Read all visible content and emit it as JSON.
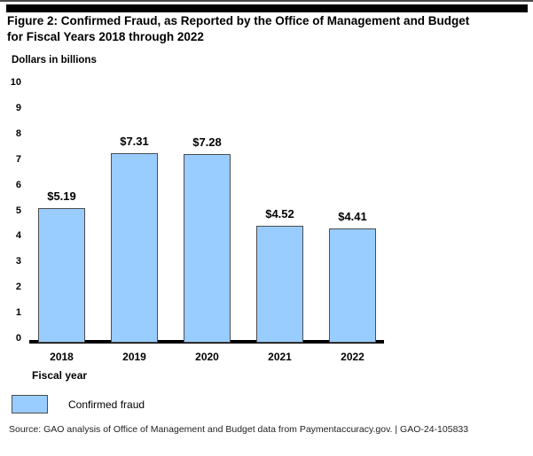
{
  "title_line1": "Figure 2: Confirmed Fraud, as Reported by the Office of Management and Budget",
  "title_line2": "for Fiscal Years 2018 through 2022",
  "chart": {
    "y_axis_title": "Dollars in billions",
    "x_axis_title": "Fiscal year"
  },
  "chart_data": {
    "type": "bar",
    "title": "Confirmed Fraud, as Reported by the Office of Management and Budget for Fiscal Years 2018 through 2022",
    "categories": [
      "2018",
      "2019",
      "2020",
      "2021",
      "2022"
    ],
    "values": [
      5.19,
      7.31,
      7.28,
      4.52,
      4.41
    ],
    "value_labels": [
      "$5.19",
      "$7.31",
      "$7.28",
      "$4.52",
      "$4.41"
    ],
    "xlabel": "Fiscal year",
    "ylabel": "Dollars in billions",
    "ylim": [
      0,
      10
    ],
    "yticks": [
      10,
      9,
      8,
      7,
      6,
      5,
      4,
      3,
      2,
      1,
      0
    ],
    "grid": false,
    "legend_position": "bottom-left",
    "series_name": "Confirmed fraud",
    "bar_fill": "#99CCFF",
    "bar_border": "#4D4D4D"
  },
  "legend": {
    "label": "Confirmed fraud"
  },
  "source": "Source: GAO analysis of Office of Management and Budget data from Paymentaccuracy.gov.  |  GAO-24-105833"
}
